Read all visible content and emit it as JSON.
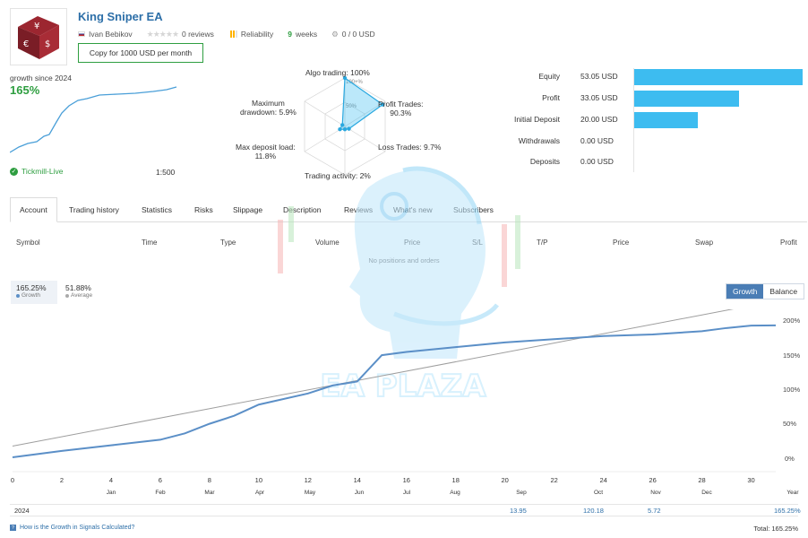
{
  "header": {
    "title": "King Sniper EA",
    "author": "Ivan Bebikov",
    "reviews": "0 reviews",
    "reliability_label": "Reliability",
    "weeks": "9",
    "weeks_label": "weeks",
    "subscribers": "0 / 0 USD",
    "copy_button": "Copy for 1000 USD per month"
  },
  "growth_mini": {
    "label": "growth since 2024",
    "value": "165%",
    "broker": "Tickmill-Live",
    "leverage": "1:500"
  },
  "radar": {
    "algo": "Algo trading: 100%",
    "profit_trades_label": "Profit Trades:",
    "profit_trades": "90.3%",
    "loss_trades": "Loss Trades: 9.7%",
    "activity": "Trading activity: 2%",
    "max_deposit_label": "Max deposit load:",
    "max_deposit": "11.8%",
    "max_dd_label1": "Maximum",
    "max_dd_label2": "drawdown: 5.9%",
    "ring_100": "100+%",
    "ring_50": "50%",
    "values": [
      1.0,
      0.903,
      0.097,
      0.02,
      0.118,
      0.059
    ]
  },
  "equity": [
    {
      "name": "Equity",
      "value": "53.05 USD",
      "amount": 53.05
    },
    {
      "name": "Profit",
      "value": "33.05 USD",
      "amount": 33.05
    },
    {
      "name": "Initial Deposit",
      "value": "20.00 USD",
      "amount": 20.0
    },
    {
      "name": "Withdrawals",
      "value": "0.00 USD",
      "amount": 0
    },
    {
      "name": "Deposits",
      "value": "0.00 USD",
      "amount": 0
    }
  ],
  "equity_color": "#3dbcf0",
  "tabs": [
    "Account",
    "Trading history",
    "Statistics",
    "Risks",
    "Slippage",
    "Description",
    "Reviews",
    "What's new",
    "Subscribers"
  ],
  "table": {
    "headers": [
      "Symbol",
      "Time",
      "Type",
      "Volume",
      "Price",
      "S/L",
      "T/P",
      "Price",
      "Swap",
      "Profit"
    ],
    "empty": "No positions and orders"
  },
  "growth_stats": {
    "growth_value": "165.25%",
    "growth_label": "Growth",
    "average_value": "51.88%",
    "average_label": "Average",
    "toggle_growth": "Growth",
    "toggle_balance": "Balance"
  },
  "chart_data": {
    "type": "line",
    "y_ticks": [
      "200%",
      "150%",
      "100%",
      "50%",
      "0%"
    ],
    "ylim": [
      -10,
      210
    ],
    "x_ticks": [
      "0",
      "2",
      "4",
      "6",
      "8",
      "10",
      "12",
      "14",
      "16",
      "18",
      "20",
      "22",
      "24",
      "26",
      "28",
      "30"
    ],
    "months": [
      "Jan",
      "Feb",
      "Mar",
      "Apr",
      "May",
      "Jun",
      "Jul",
      "Aug",
      "Sep",
      "Oct",
      "Nov",
      "Dec",
      "Year"
    ],
    "series": [
      {
        "x": [
          0,
          2,
          4,
          6,
          7,
          8,
          9,
          10,
          12,
          13,
          14,
          15,
          16,
          18,
          20,
          22,
          24,
          26,
          28,
          29,
          30,
          31
        ],
        "values": [
          0,
          8,
          15,
          22,
          30,
          42,
          52,
          66,
          80,
          90,
          95,
          128,
          132,
          138,
          144,
          148,
          152,
          154,
          158,
          162,
          165,
          165.25
        ]
      },
      {
        "x": [
          0,
          31
        ],
        "values": [
          14,
          196
        ]
      }
    ]
  },
  "year_row": {
    "year": "2024",
    "sep": "13.95",
    "oct": "120.18",
    "nov": "5.72",
    "total_year": "165.25%"
  },
  "footer": {
    "question": "How is the Growth in Signals Calculated?",
    "total": "Total: 165.25%"
  },
  "watermark": "EA PLAZA"
}
